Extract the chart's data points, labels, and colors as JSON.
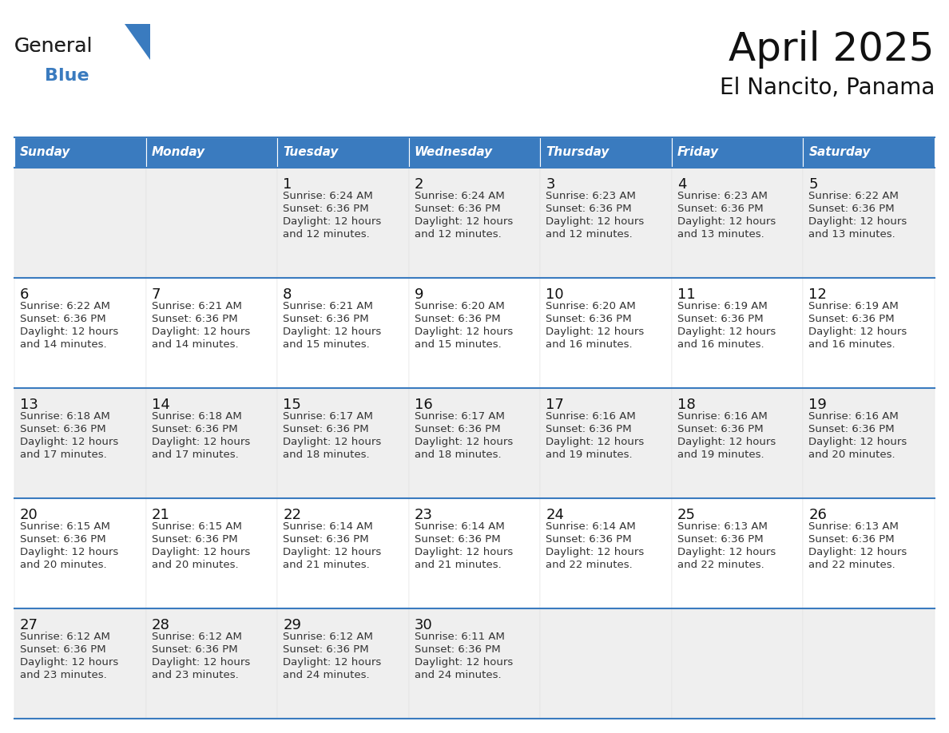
{
  "title": "April 2025",
  "subtitle": "El Nancito, Panama",
  "header_color": "#3a7bbf",
  "header_text_color": "#ffffff",
  "row_color_odd": "#efefef",
  "row_color_even": "#ffffff",
  "border_color": "#3a7bbf",
  "day_headers": [
    "Sunday",
    "Monday",
    "Tuesday",
    "Wednesday",
    "Thursday",
    "Friday",
    "Saturday"
  ],
  "days": [
    {
      "col": 0,
      "row": 0,
      "num": "",
      "sunrise": "",
      "sunset": "",
      "daylight_line1": "",
      "daylight_line2": ""
    },
    {
      "col": 1,
      "row": 0,
      "num": "",
      "sunrise": "",
      "sunset": "",
      "daylight_line1": "",
      "daylight_line2": ""
    },
    {
      "col": 2,
      "row": 0,
      "num": "1",
      "sunrise": "Sunrise: 6:24 AM",
      "sunset": "Sunset: 6:36 PM",
      "daylight_line1": "Daylight: 12 hours",
      "daylight_line2": "and 12 minutes."
    },
    {
      "col": 3,
      "row": 0,
      "num": "2",
      "sunrise": "Sunrise: 6:24 AM",
      "sunset": "Sunset: 6:36 PM",
      "daylight_line1": "Daylight: 12 hours",
      "daylight_line2": "and 12 minutes."
    },
    {
      "col": 4,
      "row": 0,
      "num": "3",
      "sunrise": "Sunrise: 6:23 AM",
      "sunset": "Sunset: 6:36 PM",
      "daylight_line1": "Daylight: 12 hours",
      "daylight_line2": "and 12 minutes."
    },
    {
      "col": 5,
      "row": 0,
      "num": "4",
      "sunrise": "Sunrise: 6:23 AM",
      "sunset": "Sunset: 6:36 PM",
      "daylight_line1": "Daylight: 12 hours",
      "daylight_line2": "and 13 minutes."
    },
    {
      "col": 6,
      "row": 0,
      "num": "5",
      "sunrise": "Sunrise: 6:22 AM",
      "sunset": "Sunset: 6:36 PM",
      "daylight_line1": "Daylight: 12 hours",
      "daylight_line2": "and 13 minutes."
    },
    {
      "col": 0,
      "row": 1,
      "num": "6",
      "sunrise": "Sunrise: 6:22 AM",
      "sunset": "Sunset: 6:36 PM",
      "daylight_line1": "Daylight: 12 hours",
      "daylight_line2": "and 14 minutes."
    },
    {
      "col": 1,
      "row": 1,
      "num": "7",
      "sunrise": "Sunrise: 6:21 AM",
      "sunset": "Sunset: 6:36 PM",
      "daylight_line1": "Daylight: 12 hours",
      "daylight_line2": "and 14 minutes."
    },
    {
      "col": 2,
      "row": 1,
      "num": "8",
      "sunrise": "Sunrise: 6:21 AM",
      "sunset": "Sunset: 6:36 PM",
      "daylight_line1": "Daylight: 12 hours",
      "daylight_line2": "and 15 minutes."
    },
    {
      "col": 3,
      "row": 1,
      "num": "9",
      "sunrise": "Sunrise: 6:20 AM",
      "sunset": "Sunset: 6:36 PM",
      "daylight_line1": "Daylight: 12 hours",
      "daylight_line2": "and 15 minutes."
    },
    {
      "col": 4,
      "row": 1,
      "num": "10",
      "sunrise": "Sunrise: 6:20 AM",
      "sunset": "Sunset: 6:36 PM",
      "daylight_line1": "Daylight: 12 hours",
      "daylight_line2": "and 16 minutes."
    },
    {
      "col": 5,
      "row": 1,
      "num": "11",
      "sunrise": "Sunrise: 6:19 AM",
      "sunset": "Sunset: 6:36 PM",
      "daylight_line1": "Daylight: 12 hours",
      "daylight_line2": "and 16 minutes."
    },
    {
      "col": 6,
      "row": 1,
      "num": "12",
      "sunrise": "Sunrise: 6:19 AM",
      "sunset": "Sunset: 6:36 PM",
      "daylight_line1": "Daylight: 12 hours",
      "daylight_line2": "and 16 minutes."
    },
    {
      "col": 0,
      "row": 2,
      "num": "13",
      "sunrise": "Sunrise: 6:18 AM",
      "sunset": "Sunset: 6:36 PM",
      "daylight_line1": "Daylight: 12 hours",
      "daylight_line2": "and 17 minutes."
    },
    {
      "col": 1,
      "row": 2,
      "num": "14",
      "sunrise": "Sunrise: 6:18 AM",
      "sunset": "Sunset: 6:36 PM",
      "daylight_line1": "Daylight: 12 hours",
      "daylight_line2": "and 17 minutes."
    },
    {
      "col": 2,
      "row": 2,
      "num": "15",
      "sunrise": "Sunrise: 6:17 AM",
      "sunset": "Sunset: 6:36 PM",
      "daylight_line1": "Daylight: 12 hours",
      "daylight_line2": "and 18 minutes."
    },
    {
      "col": 3,
      "row": 2,
      "num": "16",
      "sunrise": "Sunrise: 6:17 AM",
      "sunset": "Sunset: 6:36 PM",
      "daylight_line1": "Daylight: 12 hours",
      "daylight_line2": "and 18 minutes."
    },
    {
      "col": 4,
      "row": 2,
      "num": "17",
      "sunrise": "Sunrise: 6:16 AM",
      "sunset": "Sunset: 6:36 PM",
      "daylight_line1": "Daylight: 12 hours",
      "daylight_line2": "and 19 minutes."
    },
    {
      "col": 5,
      "row": 2,
      "num": "18",
      "sunrise": "Sunrise: 6:16 AM",
      "sunset": "Sunset: 6:36 PM",
      "daylight_line1": "Daylight: 12 hours",
      "daylight_line2": "and 19 minutes."
    },
    {
      "col": 6,
      "row": 2,
      "num": "19",
      "sunrise": "Sunrise: 6:16 AM",
      "sunset": "Sunset: 6:36 PM",
      "daylight_line1": "Daylight: 12 hours",
      "daylight_line2": "and 20 minutes."
    },
    {
      "col": 0,
      "row": 3,
      "num": "20",
      "sunrise": "Sunrise: 6:15 AM",
      "sunset": "Sunset: 6:36 PM",
      "daylight_line1": "Daylight: 12 hours",
      "daylight_line2": "and 20 minutes."
    },
    {
      "col": 1,
      "row": 3,
      "num": "21",
      "sunrise": "Sunrise: 6:15 AM",
      "sunset": "Sunset: 6:36 PM",
      "daylight_line1": "Daylight: 12 hours",
      "daylight_line2": "and 20 minutes."
    },
    {
      "col": 2,
      "row": 3,
      "num": "22",
      "sunrise": "Sunrise: 6:14 AM",
      "sunset": "Sunset: 6:36 PM",
      "daylight_line1": "Daylight: 12 hours",
      "daylight_line2": "and 21 minutes."
    },
    {
      "col": 3,
      "row": 3,
      "num": "23",
      "sunrise": "Sunrise: 6:14 AM",
      "sunset": "Sunset: 6:36 PM",
      "daylight_line1": "Daylight: 12 hours",
      "daylight_line2": "and 21 minutes."
    },
    {
      "col": 4,
      "row": 3,
      "num": "24",
      "sunrise": "Sunrise: 6:14 AM",
      "sunset": "Sunset: 6:36 PM",
      "daylight_line1": "Daylight: 12 hours",
      "daylight_line2": "and 22 minutes."
    },
    {
      "col": 5,
      "row": 3,
      "num": "25",
      "sunrise": "Sunrise: 6:13 AM",
      "sunset": "Sunset: 6:36 PM",
      "daylight_line1": "Daylight: 12 hours",
      "daylight_line2": "and 22 minutes."
    },
    {
      "col": 6,
      "row": 3,
      "num": "26",
      "sunrise": "Sunrise: 6:13 AM",
      "sunset": "Sunset: 6:36 PM",
      "daylight_line1": "Daylight: 12 hours",
      "daylight_line2": "and 22 minutes."
    },
    {
      "col": 0,
      "row": 4,
      "num": "27",
      "sunrise": "Sunrise: 6:12 AM",
      "sunset": "Sunset: 6:36 PM",
      "daylight_line1": "Daylight: 12 hours",
      "daylight_line2": "and 23 minutes."
    },
    {
      "col": 1,
      "row": 4,
      "num": "28",
      "sunrise": "Sunrise: 6:12 AM",
      "sunset": "Sunset: 6:36 PM",
      "daylight_line1": "Daylight: 12 hours",
      "daylight_line2": "and 23 minutes."
    },
    {
      "col": 2,
      "row": 4,
      "num": "29",
      "sunrise": "Sunrise: 6:12 AM",
      "sunset": "Sunset: 6:36 PM",
      "daylight_line1": "Daylight: 12 hours",
      "daylight_line2": "and 24 minutes."
    },
    {
      "col": 3,
      "row": 4,
      "num": "30",
      "sunrise": "Sunrise: 6:11 AM",
      "sunset": "Sunset: 6:36 PM",
      "daylight_line1": "Daylight: 12 hours",
      "daylight_line2": "and 24 minutes."
    },
    {
      "col": 4,
      "row": 4,
      "num": "",
      "sunrise": "",
      "sunset": "",
      "daylight_line1": "",
      "daylight_line2": ""
    },
    {
      "col": 5,
      "row": 4,
      "num": "",
      "sunrise": "",
      "sunset": "",
      "daylight_line1": "",
      "daylight_line2": ""
    },
    {
      "col": 6,
      "row": 4,
      "num": "",
      "sunrise": "",
      "sunset": "",
      "daylight_line1": "",
      "daylight_line2": ""
    }
  ],
  "logo_color_general": "#222222",
  "logo_color_blue": "#3a7bbf",
  "title_fontsize": 36,
  "subtitle_fontsize": 20,
  "header_fontsize": 11,
  "daynum_fontsize": 13,
  "cell_fontsize": 9.5
}
